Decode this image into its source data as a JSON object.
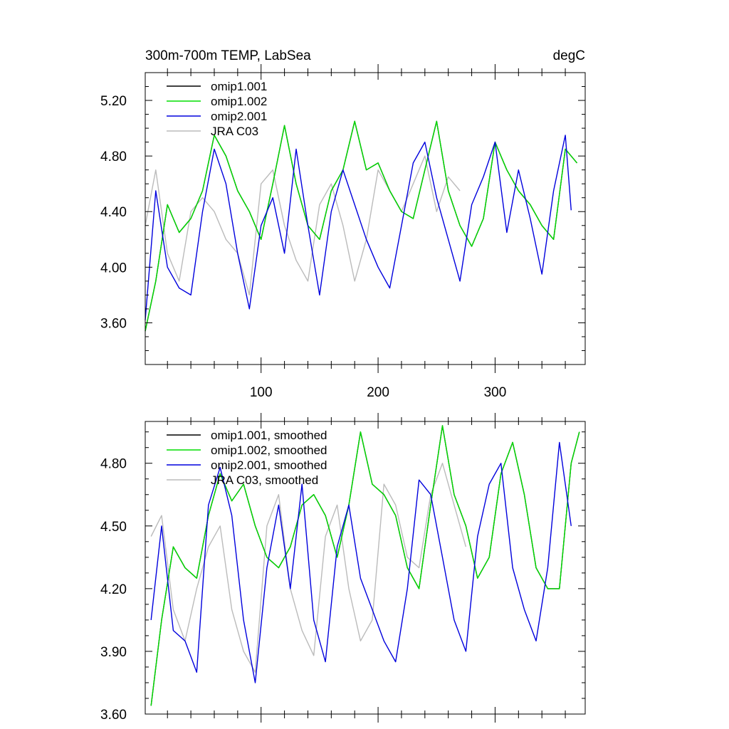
{
  "chart_data": [
    {
      "type": "line",
      "title": "300m-700m TEMP, LabSea",
      "units": "degC",
      "xlabel": "",
      "ylabel": "",
      "xlim": [
        1,
        377
      ],
      "ylim": [
        3.3,
        5.4
      ],
      "xticks": [
        100,
        200,
        300
      ],
      "yticks": [
        3.6,
        4.0,
        4.4,
        4.8,
        5.2
      ],
      "ytick_labels": [
        "3.60",
        "4.00",
        "4.40",
        "4.80",
        "5.20"
      ],
      "legend_position": "top-left",
      "series": [
        {
          "name": "omip1.001",
          "color": "#000000",
          "x": [
            1,
            10,
            20,
            30,
            40,
            50,
            60,
            70,
            80,
            90,
            100,
            110,
            120,
            130,
            140,
            150,
            160,
            170,
            180,
            190,
            200,
            210,
            220,
            230,
            240,
            250,
            260,
            270,
            280,
            290,
            300,
            310,
            320,
            330,
            340,
            350,
            360,
            370
          ],
          "values": [
            3.54,
            3.9,
            4.45,
            4.25,
            4.35,
            4.55,
            4.95,
            4.8,
            4.55,
            4.4,
            4.2,
            4.6,
            5.02,
            4.6,
            4.3,
            4.2,
            4.55,
            4.7,
            5.05,
            4.7,
            4.75,
            4.55,
            4.4,
            4.35,
            4.7,
            5.05,
            4.55,
            4.3,
            4.15,
            4.35,
            4.9,
            4.7,
            4.55,
            4.45,
            4.3,
            4.2,
            4.85,
            4.75
          ]
        },
        {
          "name": "omip1.002",
          "color": "#00dd00",
          "x": [
            1,
            10,
            20,
            30,
            40,
            50,
            60,
            70,
            80,
            90,
            100,
            110,
            120,
            130,
            140,
            150,
            160,
            170,
            180,
            190,
            200,
            210,
            220,
            230,
            240,
            250,
            260,
            270,
            280,
            290,
            300,
            310,
            320,
            330,
            340,
            350,
            360,
            370
          ],
          "values": [
            3.54,
            3.9,
            4.45,
            4.25,
            4.35,
            4.55,
            4.95,
            4.8,
            4.55,
            4.4,
            4.2,
            4.6,
            5.02,
            4.6,
            4.3,
            4.2,
            4.55,
            4.7,
            5.05,
            4.7,
            4.75,
            4.55,
            4.4,
            4.35,
            4.7,
            5.05,
            4.55,
            4.3,
            4.15,
            4.35,
            4.9,
            4.7,
            4.55,
            4.45,
            4.3,
            4.2,
            4.85,
            4.75
          ]
        },
        {
          "name": "omip2.001",
          "color": "#0000dd",
          "x": [
            1,
            10,
            20,
            30,
            40,
            50,
            60,
            70,
            80,
            90,
            100,
            110,
            120,
            130,
            140,
            150,
            160,
            170,
            180,
            190,
            200,
            210,
            220,
            230,
            240,
            250,
            260,
            270,
            280,
            290,
            300,
            310,
            320,
            330,
            340,
            350,
            360,
            365
          ],
          "values": [
            3.62,
            4.55,
            4.0,
            3.85,
            3.8,
            4.4,
            4.85,
            4.6,
            4.1,
            3.7,
            4.3,
            4.5,
            4.1,
            4.85,
            4.3,
            3.8,
            4.4,
            4.7,
            4.45,
            4.2,
            4.0,
            3.85,
            4.3,
            4.75,
            4.9,
            4.5,
            4.2,
            3.9,
            4.45,
            4.65,
            4.9,
            4.25,
            4.7,
            4.35,
            3.95,
            4.55,
            4.95,
            4.41
          ]
        },
        {
          "name": "JRA C03",
          "color": "#bbbbbb",
          "x": [
            1,
            10,
            20,
            30,
            40,
            50,
            60,
            70,
            80,
            90,
            100,
            110,
            120,
            130,
            140,
            150,
            160,
            170,
            180,
            190,
            200,
            210,
            220,
            230,
            240,
            250,
            260,
            270
          ],
          "values": [
            4.3,
            4.7,
            4.1,
            3.9,
            4.4,
            4.5,
            4.4,
            4.2,
            4.1,
            3.8,
            4.6,
            4.7,
            4.3,
            4.05,
            3.9,
            4.45,
            4.6,
            4.3,
            3.9,
            4.2,
            4.7,
            4.55,
            4.4,
            4.6,
            4.8,
            4.4,
            4.65,
            4.55
          ]
        }
      ]
    },
    {
      "type": "line",
      "title": "",
      "xlabel": "",
      "ylabel": "",
      "xlim": [
        1,
        377
      ],
      "ylim": [
        3.6,
        5.0
      ],
      "xticks": [
        100,
        200,
        300
      ],
      "yticks": [
        3.6,
        3.9,
        4.2,
        4.5,
        4.8
      ],
      "ytick_labels": [
        "3.60",
        "3.90",
        "4.20",
        "4.50",
        "4.80"
      ],
      "legend_position": "top-left",
      "series": [
        {
          "name": "omip1.001, smoothed",
          "color": "#000000",
          "x": [
            6,
            15,
            25,
            35,
            45,
            55,
            65,
            75,
            85,
            95,
            105,
            115,
            125,
            135,
            145,
            155,
            165,
            175,
            185,
            195,
            205,
            215,
            225,
            235,
            245,
            255,
            265,
            275,
            285,
            295,
            305,
            315,
            325,
            335,
            345,
            355,
            365,
            372
          ],
          "values": [
            3.64,
            4.05,
            4.4,
            4.3,
            4.25,
            4.55,
            4.75,
            4.62,
            4.7,
            4.5,
            4.35,
            4.3,
            4.4,
            4.6,
            4.65,
            4.55,
            4.35,
            4.6,
            4.95,
            4.7,
            4.65,
            4.55,
            4.3,
            4.2,
            4.6,
            4.98,
            4.65,
            4.5,
            4.25,
            4.35,
            4.75,
            4.9,
            4.65,
            4.3,
            4.2,
            4.2,
            4.8,
            4.95
          ]
        },
        {
          "name": "omip1.002, smoothed",
          "color": "#00dd00",
          "x": [
            6,
            15,
            25,
            35,
            45,
            55,
            65,
            75,
            85,
            95,
            105,
            115,
            125,
            135,
            145,
            155,
            165,
            175,
            185,
            195,
            205,
            215,
            225,
            235,
            245,
            255,
            265,
            275,
            285,
            295,
            305,
            315,
            325,
            335,
            345,
            355,
            365,
            372
          ],
          "values": [
            3.64,
            4.05,
            4.4,
            4.3,
            4.25,
            4.55,
            4.75,
            4.62,
            4.7,
            4.5,
            4.35,
            4.3,
            4.4,
            4.6,
            4.65,
            4.55,
            4.35,
            4.6,
            4.95,
            4.7,
            4.65,
            4.55,
            4.3,
            4.2,
            4.6,
            4.98,
            4.65,
            4.5,
            4.25,
            4.35,
            4.75,
            4.9,
            4.65,
            4.3,
            4.2,
            4.2,
            4.8,
            4.95
          ]
        },
        {
          "name": "omip2.001, smoothed",
          "color": "#0000dd",
          "x": [
            6,
            15,
            25,
            35,
            45,
            55,
            65,
            75,
            85,
            95,
            105,
            115,
            125,
            135,
            145,
            155,
            165,
            175,
            185,
            195,
            205,
            215,
            225,
            235,
            245,
            255,
            265,
            275,
            285,
            295,
            305,
            315,
            325,
            335,
            345,
            355,
            365
          ],
          "values": [
            4.05,
            4.5,
            4.0,
            3.95,
            3.8,
            4.6,
            4.78,
            4.55,
            4.05,
            3.75,
            4.3,
            4.6,
            4.2,
            4.7,
            4.05,
            3.85,
            4.4,
            4.6,
            4.25,
            4.1,
            3.95,
            3.85,
            4.2,
            4.72,
            4.65,
            4.35,
            4.05,
            3.9,
            4.45,
            4.7,
            4.8,
            4.3,
            4.1,
            3.95,
            4.3,
            4.9,
            4.5
          ]
        },
        {
          "name": "JRA C03, smoothed",
          "color": "#bbbbbb",
          "x": [
            6,
            15,
            25,
            35,
            45,
            55,
            65,
            75,
            85,
            95,
            105,
            115,
            125,
            135,
            145,
            155,
            165,
            175,
            185,
            195,
            205,
            215,
            225,
            235,
            245,
            255,
            265,
            275
          ],
          "values": [
            4.45,
            4.55,
            4.1,
            3.95,
            4.2,
            4.4,
            4.5,
            4.1,
            3.9,
            3.8,
            4.5,
            4.65,
            4.2,
            4.0,
            3.88,
            4.45,
            4.6,
            4.2,
            3.95,
            4.05,
            4.7,
            4.6,
            4.35,
            4.3,
            4.65,
            4.8,
            4.6,
            4.4
          ]
        }
      ]
    }
  ]
}
